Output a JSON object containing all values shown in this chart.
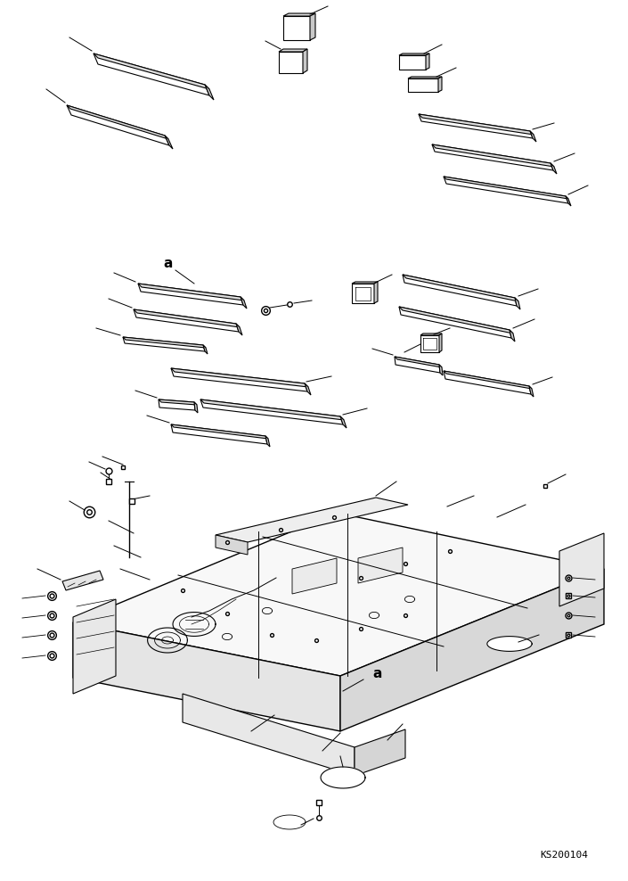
{
  "bg_color": "#ffffff",
  "line_color": "#000000",
  "line_width": 0.8,
  "watermark": "KS200104",
  "fig_width": 7.05,
  "fig_height": 9.88,
  "dpi": 100
}
